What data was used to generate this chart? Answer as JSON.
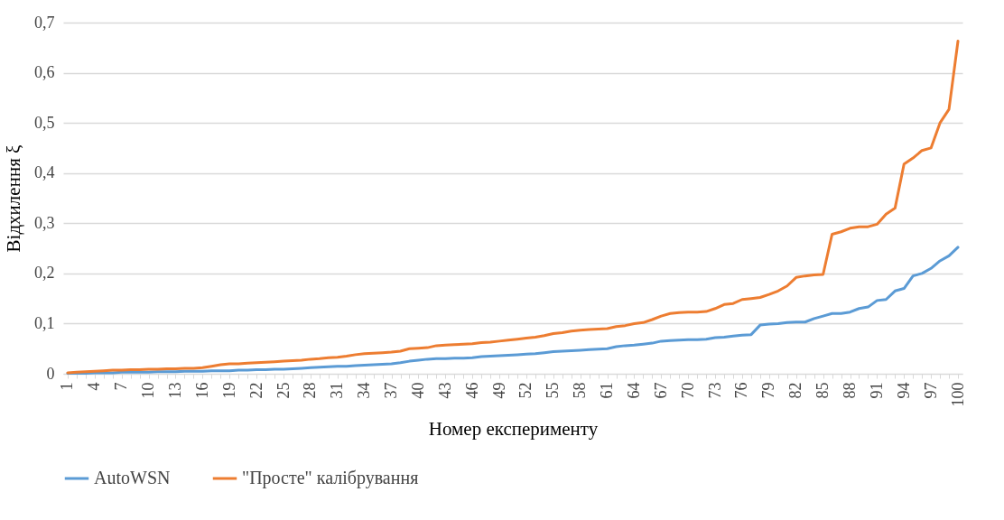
{
  "chart_data": {
    "type": "line",
    "xlabel": "Номер експерименту",
    "ylabel": "Відхилення ξ",
    "categories": [
      "1",
      null,
      null,
      "4",
      null,
      null,
      "7",
      null,
      null,
      "10",
      null,
      null,
      "13",
      null,
      null,
      "16",
      null,
      null,
      "19",
      null,
      null,
      "22",
      null,
      null,
      "25",
      null,
      null,
      "28",
      null,
      null,
      "31",
      null,
      null,
      "34",
      null,
      null,
      "37",
      null,
      null,
      "40",
      null,
      null,
      "43",
      null,
      null,
      "46",
      null,
      null,
      "49",
      null,
      null,
      "52",
      null,
      null,
      "55",
      null,
      null,
      "58",
      null,
      null,
      "61",
      null,
      null,
      "64",
      null,
      null,
      "67",
      null,
      null,
      "70",
      null,
      null,
      "73",
      null,
      null,
      "76",
      null,
      null,
      "79",
      null,
      null,
      "82",
      null,
      null,
      "85",
      null,
      null,
      "88",
      null,
      null,
      "91",
      null,
      null,
      "94",
      null,
      null,
      "97",
      null,
      null,
      "100"
    ],
    "series": [
      {
        "name": "AutoWSN",
        "color": "#5b9bd5",
        "values": [
          0.001,
          0.001,
          0.001,
          0.002,
          0.002,
          0.002,
          0.003,
          0.003,
          0.003,
          0.003,
          0.004,
          0.004,
          0.004,
          0.005,
          0.005,
          0.005,
          0.006,
          0.006,
          0.006,
          0.007,
          0.007,
          0.008,
          0.008,
          0.009,
          0.009,
          0.01,
          0.011,
          0.012,
          0.013,
          0.014,
          0.015,
          0.015,
          0.016,
          0.017,
          0.018,
          0.019,
          0.02,
          0.022,
          0.025,
          0.027,
          0.029,
          0.03,
          0.03,
          0.031,
          0.031,
          0.032,
          0.034,
          0.035,
          0.036,
          0.037,
          0.038,
          0.039,
          0.04,
          0.042,
          0.044,
          0.045,
          0.046,
          0.047,
          0.048,
          0.049,
          0.05,
          0.054,
          0.056,
          0.057,
          0.059,
          0.061,
          0.065,
          0.066,
          0.067,
          0.068,
          0.068,
          0.069,
          0.072,
          0.073,
          0.075,
          0.077,
          0.078,
          0.097,
          0.099,
          0.1,
          0.102,
          0.103,
          0.103,
          0.11,
          0.115,
          0.12,
          0.12,
          0.123,
          0.13,
          0.133,
          0.146,
          0.148,
          0.165,
          0.17,
          0.195,
          0.2,
          0.21,
          0.225,
          0.235,
          0.252
        ]
      },
      {
        "name": "\"Просте\" калібрування",
        "color": "#ed7d31",
        "values": [
          0.002,
          0.003,
          0.004,
          0.005,
          0.006,
          0.007,
          0.007,
          0.008,
          0.008,
          0.009,
          0.009,
          0.01,
          0.01,
          0.011,
          0.011,
          0.012,
          0.015,
          0.018,
          0.02,
          0.02,
          0.021,
          0.022,
          0.023,
          0.024,
          0.025,
          0.026,
          0.027,
          0.029,
          0.03,
          0.032,
          0.033,
          0.035,
          0.038,
          0.04,
          0.041,
          0.042,
          0.043,
          0.045,
          0.05,
          0.051,
          0.052,
          0.056,
          0.057,
          0.058,
          0.059,
          0.06,
          0.062,
          0.063,
          0.065,
          0.067,
          0.069,
          0.071,
          0.073,
          0.076,
          0.08,
          0.082,
          0.085,
          0.087,
          0.088,
          0.089,
          0.09,
          0.094,
          0.096,
          0.1,
          0.102,
          0.108,
          0.115,
          0.12,
          0.122,
          0.123,
          0.123,
          0.124,
          0.13,
          0.138,
          0.14,
          0.148,
          0.15,
          0.152,
          0.158,
          0.165,
          0.175,
          0.192,
          0.195,
          0.197,
          0.198,
          0.278,
          0.283,
          0.29,
          0.293,
          0.293,
          0.298,
          0.318,
          0.33,
          0.418,
          0.43,
          0.445,
          0.45,
          0.5,
          0.527,
          0.663
        ]
      }
    ],
    "ylim": [
      0,
      0.7
    ],
    "yticks": [
      0,
      {
        "value": 0.1,
        "label": "0,1"
      },
      {
        "value": 0.2,
        "label": "0,2"
      },
      {
        "value": 0.3,
        "label": "0,3"
      },
      {
        "value": 0.4,
        "label": "0,4"
      },
      {
        "value": 0.5,
        "label": "0,5"
      },
      {
        "value": 0.6,
        "label": "0,6"
      },
      {
        "value": 0.7,
        "label": "0,7"
      }
    ],
    "grid": "y",
    "legend": "bottom",
    "marker": "none",
    "line_style": "solid"
  }
}
